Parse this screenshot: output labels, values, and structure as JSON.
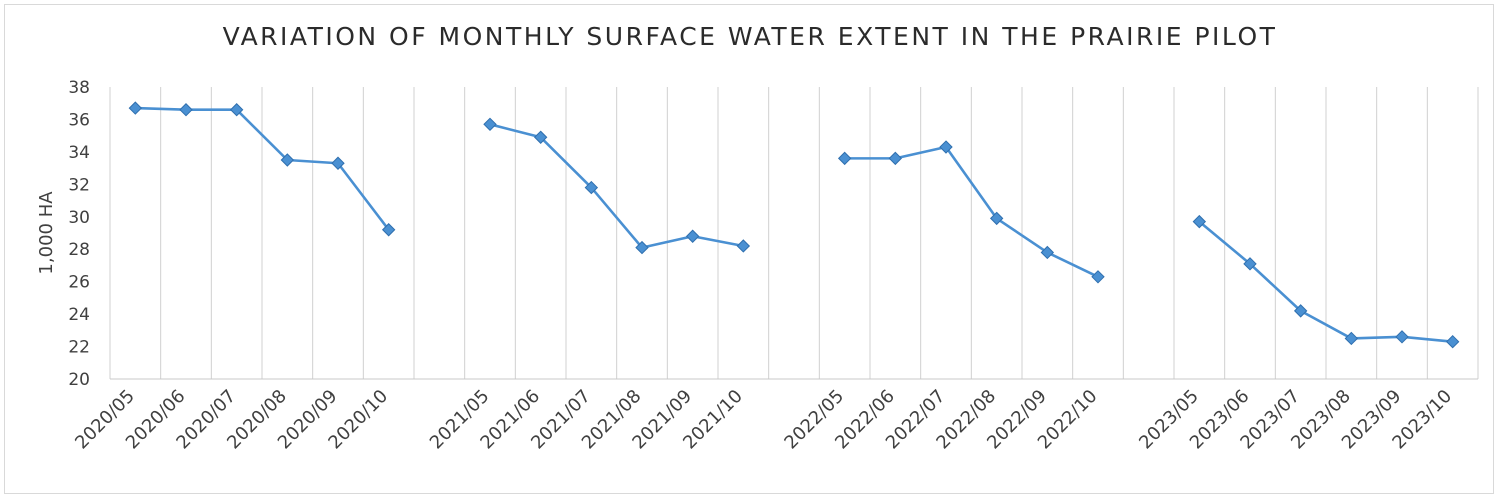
{
  "chart_data": {
    "type": "line",
    "title": "VARIATION OF MONTHLY SURFACE WATER EXTENT IN THE PRAIRIE PILOT",
    "xlabel": "",
    "ylabel": "1,000 HA",
    "ylim": [
      20,
      38
    ],
    "yticks": [
      20,
      22,
      24,
      26,
      28,
      30,
      32,
      34,
      36,
      38
    ],
    "grid": "vertical",
    "legend": "none",
    "color": "#4a90d2",
    "categories": [
      "2020/05",
      "2020/06",
      "2020/07",
      "2020/08",
      "2020/09",
      "2020/10",
      "",
      "2021/05",
      "2021/06",
      "2021/07",
      "2021/08",
      "2021/09",
      "2021/10",
      "",
      "2022/05",
      "2022/06",
      "2022/07",
      "2022/08",
      "2022/09",
      "2022/10",
      "",
      "2023/05",
      "2023/06",
      "2023/07",
      "2023/08",
      "2023/09",
      "2023/10"
    ],
    "values": [
      36.7,
      36.6,
      36.6,
      33.5,
      33.3,
      29.2,
      null,
      35.7,
      34.9,
      31.8,
      28.1,
      28.8,
      28.2,
      null,
      33.6,
      33.6,
      34.3,
      29.9,
      27.8,
      26.3,
      null,
      29.7,
      27.1,
      24.2,
      22.5,
      22.6,
      22.3
    ]
  }
}
